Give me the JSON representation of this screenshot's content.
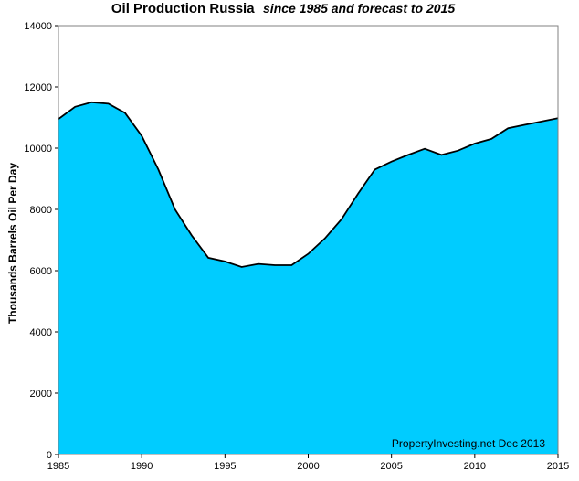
{
  "chart_data": {
    "type": "area",
    "title": "Oil Production Russia",
    "subtitle": "since 1985 and forecast to 2015",
    "xlabel": "",
    "ylabel": "Thousands Barrels Oil Per Day",
    "xlim": [
      1985,
      2015
    ],
    "ylim": [
      0,
      14000
    ],
    "x_ticks": [
      1985,
      1990,
      1995,
      2000,
      2005,
      2010,
      2015
    ],
    "y_ticks": [
      0,
      2000,
      4000,
      6000,
      8000,
      10000,
      12000,
      14000
    ],
    "grid": false,
    "fill_color": "#00CCFF",
    "plot_background": "#FFFFFF",
    "line_color": "#000000",
    "annotation": "PropertyInvesting.net  Dec 2013",
    "series": [
      {
        "x": [
          1985,
          1986,
          1987,
          1988,
          1989,
          1990,
          1991,
          1992,
          1993,
          1994,
          1995,
          1996,
          1997,
          1998,
          1999,
          2000,
          2001,
          2002,
          2003,
          2004,
          2005,
          2006,
          2007,
          2008,
          2009,
          2010,
          2011,
          2012,
          2013,
          2014,
          2015
        ],
        "values": [
          10950,
          11350,
          11500,
          11450,
          11150,
          10400,
          9300,
          8000,
          7150,
          6420,
          6300,
          6120,
          6220,
          6180,
          6180,
          6550,
          7050,
          7680,
          8520,
          9300,
          9560,
          9780,
          9980,
          9780,
          9920,
          10150,
          10300,
          10650,
          10760,
          10870,
          10980
        ]
      }
    ]
  }
}
